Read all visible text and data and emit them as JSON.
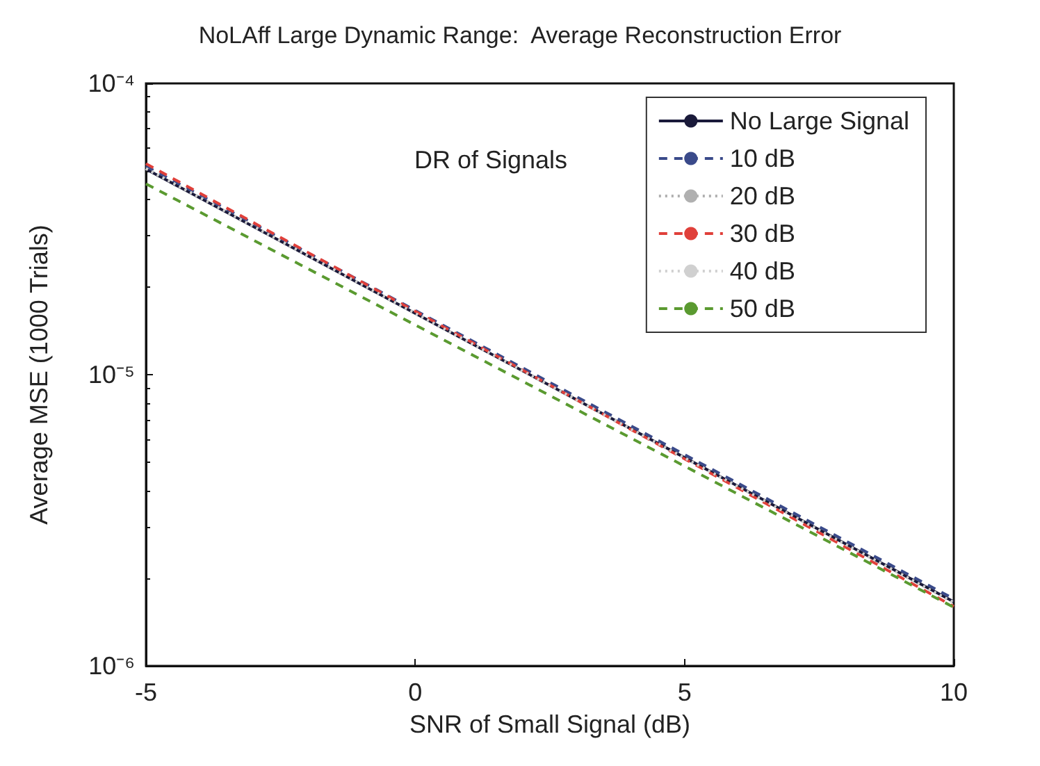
{
  "chart_data": {
    "type": "line",
    "title": "NoLAff Large Dynamic Range:  Average Reconstruction Error",
    "xlabel": "SNR of Small Signal (dB)",
    "ylabel": "Average MSE (1000 Trials)",
    "legend_title": "DR of Signals",
    "x": [
      -5,
      10
    ],
    "series": [
      {
        "name": "No Large Signal",
        "color": "#1a1a3a",
        "line_style": "solid",
        "values": [
          5.08e-05,
          1.66e-06
        ]
      },
      {
        "name": "10 dB",
        "color": "#3a4a8a",
        "line_style": "dashed",
        "values": [
          5.2e-05,
          1.7e-06
        ]
      },
      {
        "name": "20 dB",
        "color": "#b0b0b0",
        "line_style": "dotted",
        "values": [
          5.1e-05,
          1.65e-06
        ]
      },
      {
        "name": "30 dB",
        "color": "#e0403a",
        "line_style": "dashed",
        "values": [
          5.3e-05,
          1.6e-06
        ]
      },
      {
        "name": "40 dB",
        "color": "#d0d0d0",
        "line_style": "dotted",
        "values": [
          5.1e-05,
          1.65e-06
        ]
      },
      {
        "name": "50 dB",
        "color": "#5a9a30",
        "line_style": "dashed",
        "values": [
          4.52e-05,
          1.59e-06
        ]
      }
    ],
    "xlim": [
      -5,
      10
    ],
    "xticks": [
      -5,
      0,
      5,
      10
    ],
    "ylim": [
      1e-06,
      0.0001
    ],
    "yticks": [
      {
        "value": 1e-06,
        "label": "10⁻⁶"
      },
      {
        "value": 1e-05,
        "label": "10⁻⁵"
      },
      {
        "value": 0.0001,
        "label": "10⁻⁴"
      }
    ],
    "log": "y",
    "grid": false,
    "legend": "top right",
    "marker": "none"
  }
}
